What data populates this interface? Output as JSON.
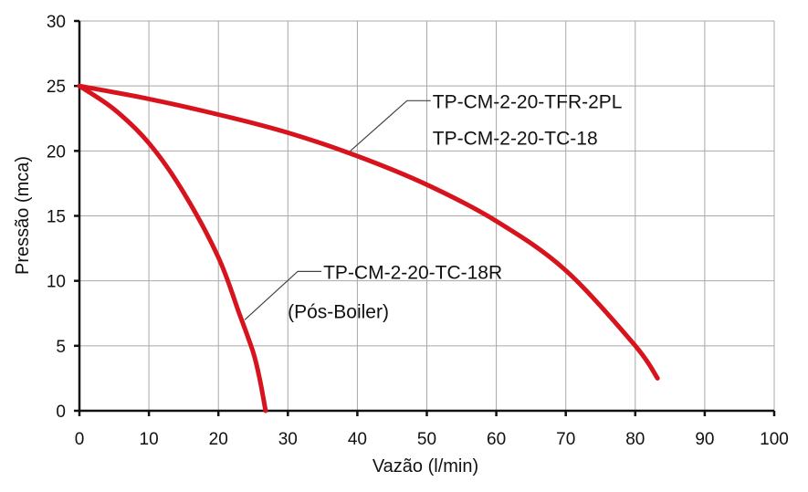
{
  "chart_data": {
    "type": "line",
    "title": "",
    "xlabel": "Vazão (l/min)",
    "ylabel": "Pressão (mca)",
    "xlim": [
      0,
      100
    ],
    "ylim": [
      0,
      30
    ],
    "xticks": [
      0,
      10,
      20,
      30,
      40,
      50,
      60,
      70,
      80,
      90,
      100
    ],
    "yticks": [
      0,
      5,
      10,
      15,
      20,
      25,
      30
    ],
    "grid": true,
    "line_color": "#d7141e",
    "series": [
      {
        "name": "TP-CM-2-20-TFR-2PL / TP-CM-2-20-TC-18",
        "x": [
          0,
          10,
          20,
          30,
          40,
          50,
          60,
          70,
          80,
          83.2
        ],
        "y": [
          25,
          24.0,
          22.8,
          21.4,
          19.6,
          17.4,
          14.6,
          10.8,
          5.0,
          2.5
        ]
      },
      {
        "name": "TP-CM-2-20-TC-18R (Pós-Boiler)",
        "x": [
          0,
          5,
          10,
          15,
          20,
          23,
          25,
          26,
          26.8
        ],
        "y": [
          25,
          23.2,
          20.6,
          16.8,
          11.8,
          7.5,
          4.5,
          2.3,
          0
        ]
      }
    ],
    "annotations": [
      {
        "series": 0,
        "lines": [
          "TP-CM-2-20-TFR-2PL",
          "TP-CM-2-20-TC-18"
        ],
        "point": [
          39,
          20.0
        ]
      },
      {
        "series": 1,
        "lines": [
          "TP-CM-2-20-TC-18R",
          "(Pós-Boiler)"
        ],
        "point": [
          23.8,
          7.0
        ]
      }
    ]
  }
}
